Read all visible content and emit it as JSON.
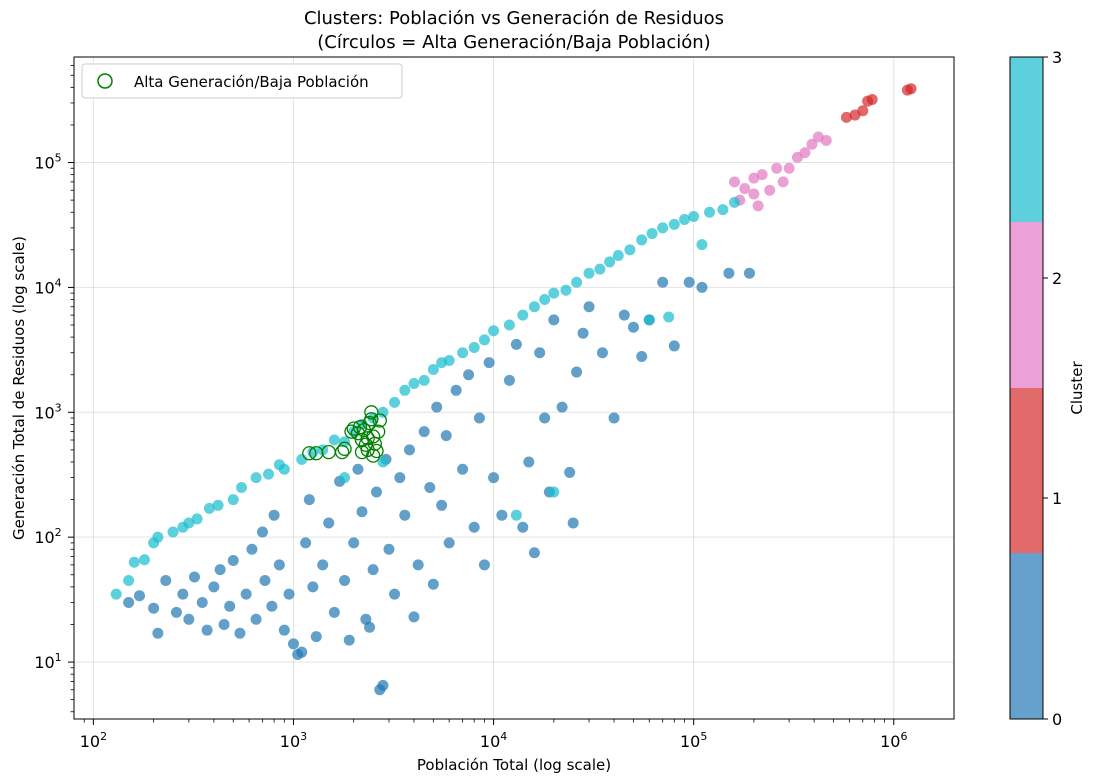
{
  "chart_data": {
    "type": "scatter",
    "title": "Clusters: Población vs Generación de Residuos",
    "subtitle": "(Círculos = Alta Generación/Baja Población)",
    "xlabel": "Población Total (log scale)",
    "ylabel": "Generación Total de Residuos (log scale)",
    "x_scale": "log",
    "y_scale": "log",
    "xlim": [
      80,
      2000000
    ],
    "ylim": [
      3.5,
      700000
    ],
    "x_ticks": [
      {
        "value": 100,
        "base": "10",
        "exp": "2"
      },
      {
        "value": 1000,
        "base": "10",
        "exp": "3"
      },
      {
        "value": 10000,
        "base": "10",
        "exp": "4"
      },
      {
        "value": 100000,
        "base": "10",
        "exp": "5"
      },
      {
        "value": 1000000,
        "base": "10",
        "exp": "6"
      }
    ],
    "y_ticks": [
      {
        "value": 10,
        "base": "10",
        "exp": "1"
      },
      {
        "value": 100,
        "base": "10",
        "exp": "2"
      },
      {
        "value": 1000,
        "base": "10",
        "exp": "3"
      },
      {
        "value": 10000,
        "base": "10",
        "exp": "4"
      },
      {
        "value": 100000,
        "base": "10",
        "exp": "5"
      }
    ],
    "grid": true,
    "legend": {
      "position": "top-left",
      "entries": [
        {
          "label": "Alta Generación/Baja Población",
          "marker": "hollow-circle",
          "color": "#008000"
        }
      ]
    },
    "colorbar": {
      "label": "Cluster",
      "ticks": [
        "0",
        "1",
        "2",
        "3"
      ],
      "colors": [
        "#1f77b4",
        "#d62728",
        "#e377c2",
        "#17becf"
      ]
    },
    "series": [
      {
        "cluster": 0,
        "color": "#1f77b4",
        "points": [
          [
            150,
            30
          ],
          [
            170,
            34
          ],
          [
            200,
            27
          ],
          [
            210,
            17
          ],
          [
            230,
            45
          ],
          [
            260,
            25
          ],
          [
            280,
            35
          ],
          [
            300,
            22
          ],
          [
            320,
            48
          ],
          [
            350,
            30
          ],
          [
            370,
            18
          ],
          [
            400,
            40
          ],
          [
            430,
            55
          ],
          [
            450,
            20
          ],
          [
            480,
            28
          ],
          [
            500,
            65
          ],
          [
            540,
            17
          ],
          [
            580,
            35
          ],
          [
            620,
            80
          ],
          [
            650,
            22
          ],
          [
            700,
            110
          ],
          [
            720,
            45
          ],
          [
            780,
            28
          ],
          [
            800,
            150
          ],
          [
            850,
            60
          ],
          [
            900,
            18
          ],
          [
            950,
            35
          ],
          [
            1000,
            14
          ],
          [
            1050,
            11.5
          ],
          [
            1100,
            12
          ],
          [
            1150,
            90
          ],
          [
            1200,
            200
          ],
          [
            1250,
            40
          ],
          [
            1300,
            16
          ],
          [
            1400,
            60
          ],
          [
            1500,
            130
          ],
          [
            1600,
            25
          ],
          [
            1700,
            280
          ],
          [
            1800,
            45
          ],
          [
            1900,
            15
          ],
          [
            2000,
            90
          ],
          [
            2100,
            350
          ],
          [
            2200,
            160
          ],
          [
            2300,
            22
          ],
          [
            2400,
            19
          ],
          [
            2500,
            55
          ],
          [
            2600,
            230
          ],
          [
            2700,
            6
          ],
          [
            2800,
            6.5
          ],
          [
            2900,
            420
          ],
          [
            3000,
            80
          ],
          [
            3200,
            35
          ],
          [
            3400,
            300
          ],
          [
            3600,
            150
          ],
          [
            3800,
            500
          ],
          [
            4000,
            23
          ],
          [
            4200,
            60
          ],
          [
            4500,
            700
          ],
          [
            4800,
            250
          ],
          [
            5000,
            42
          ],
          [
            5200,
            1100
          ],
          [
            5500,
            180
          ],
          [
            5800,
            650
          ],
          [
            6000,
            90
          ],
          [
            6500,
            1500
          ],
          [
            7000,
            350
          ],
          [
            7500,
            2000
          ],
          [
            8000,
            120
          ],
          [
            8500,
            900
          ],
          [
            9000,
            60
          ],
          [
            9500,
            2500
          ],
          [
            10000,
            300
          ],
          [
            11000,
            150
          ],
          [
            12000,
            1800
          ],
          [
            13000,
            3500
          ],
          [
            14000,
            120
          ],
          [
            15000,
            400
          ],
          [
            16000,
            75
          ],
          [
            17000,
            3000
          ],
          [
            18000,
            900
          ],
          [
            19000,
            230
          ],
          [
            20000,
            5500
          ],
          [
            22000,
            1100
          ],
          [
            24000,
            330
          ],
          [
            26000,
            2100
          ],
          [
            28000,
            4300
          ],
          [
            30000,
            7000
          ],
          [
            35000,
            3000
          ],
          [
            40000,
            900
          ],
          [
            45000,
            6000
          ],
          [
            50000,
            4800
          ],
          [
            55000,
            2800
          ],
          [
            60000,
            5500
          ],
          [
            70000,
            11000
          ],
          [
            80000,
            3400
          ],
          [
            95000,
            11000
          ],
          [
            110000,
            10000
          ],
          [
            150000,
            13000
          ],
          [
            190000,
            13000
          ],
          [
            25000,
            130
          ]
        ]
      },
      {
        "cluster": 1,
        "color": "#d62728",
        "points": [
          [
            580000,
            230000
          ],
          [
            640000,
            240000
          ],
          [
            700000,
            260000
          ],
          [
            740000,
            310000
          ],
          [
            780000,
            320000
          ],
          [
            1170000,
            380000
          ],
          [
            1220000,
            390000
          ]
        ]
      },
      {
        "cluster": 2,
        "color": "#e377c2",
        "points": [
          [
            160000,
            70000
          ],
          [
            170000,
            50000
          ],
          [
            180000,
            62000
          ],
          [
            200000,
            56000
          ],
          [
            210000,
            45000
          ],
          [
            220000,
            80000
          ],
          [
            240000,
            60000
          ],
          [
            260000,
            90000
          ],
          [
            280000,
            70000
          ],
          [
            300000,
            90000
          ],
          [
            330000,
            110000
          ],
          [
            360000,
            120000
          ],
          [
            390000,
            140000
          ],
          [
            420000,
            160000
          ],
          [
            460000,
            150000
          ],
          [
            200000,
            75000
          ]
        ]
      },
      {
        "cluster": 3,
        "color": "#17becf",
        "points": [
          [
            130,
            35
          ],
          [
            150,
            45
          ],
          [
            160,
            63
          ],
          [
            180,
            66
          ],
          [
            200,
            90
          ],
          [
            210,
            100
          ],
          [
            250,
            110
          ],
          [
            280,
            120
          ],
          [
            300,
            130
          ],
          [
            330,
            140
          ],
          [
            380,
            170
          ],
          [
            420,
            180
          ],
          [
            500,
            200
          ],
          [
            550,
            250
          ],
          [
            650,
            300
          ],
          [
            750,
            320
          ],
          [
            850,
            380
          ],
          [
            900,
            350
          ],
          [
            1100,
            420
          ],
          [
            1250,
            480
          ],
          [
            1400,
            500
          ],
          [
            1600,
            600
          ],
          [
            1800,
            580
          ],
          [
            2000,
            700
          ],
          [
            2200,
            800
          ],
          [
            2500,
            900
          ],
          [
            2800,
            1000
          ],
          [
            3200,
            1200
          ],
          [
            3600,
            1500
          ],
          [
            4000,
            1700
          ],
          [
            4500,
            1800
          ],
          [
            5000,
            2200
          ],
          [
            5500,
            2500
          ],
          [
            6000,
            2600
          ],
          [
            7000,
            3000
          ],
          [
            8000,
            3300
          ],
          [
            9000,
            3800
          ],
          [
            10000,
            4500
          ],
          [
            12000,
            5000
          ],
          [
            14000,
            6000
          ],
          [
            16000,
            7000
          ],
          [
            18000,
            8000
          ],
          [
            20000,
            9000
          ],
          [
            23000,
            9500
          ],
          [
            26000,
            11000
          ],
          [
            30000,
            13000
          ],
          [
            34000,
            14000
          ],
          [
            38000,
            16000
          ],
          [
            42000,
            18000
          ],
          [
            48000,
            20000
          ],
          [
            55000,
            24000
          ],
          [
            62000,
            27000
          ],
          [
            70000,
            30000
          ],
          [
            80000,
            32000
          ],
          [
            90000,
            35000
          ],
          [
            100000,
            37000
          ],
          [
            120000,
            40000
          ],
          [
            140000,
            42000
          ],
          [
            160000,
            48000
          ],
          [
            110000,
            22000
          ],
          [
            60000,
            5500
          ],
          [
            75000,
            5800
          ],
          [
            2800,
            400
          ],
          [
            1800,
            300
          ],
          [
            13000,
            150
          ],
          [
            20000,
            230
          ]
        ]
      }
    ],
    "highlighted": {
      "label": "Alta Generación/Baja Población",
      "color": "#008000",
      "points": [
        [
          1200,
          470
        ],
        [
          1300,
          470
        ],
        [
          1500,
          480
        ],
        [
          1750,
          480
        ],
        [
          1800,
          510
        ],
        [
          1950,
          700
        ],
        [
          2000,
          740
        ],
        [
          2100,
          680
        ],
        [
          2150,
          760
        ],
        [
          2200,
          600
        ],
        [
          2250,
          720
        ],
        [
          2300,
          550
        ],
        [
          2350,
          500
        ],
        [
          2400,
          820
        ],
        [
          2450,
          880
        ],
        [
          2450,
          1000
        ],
        [
          2500,
          640
        ],
        [
          2550,
          560
        ],
        [
          2600,
          490
        ],
        [
          2700,
          860
        ],
        [
          2650,
          700
        ],
        [
          2350,
          620
        ],
        [
          2200,
          480
        ],
        [
          2500,
          450
        ]
      ]
    }
  }
}
